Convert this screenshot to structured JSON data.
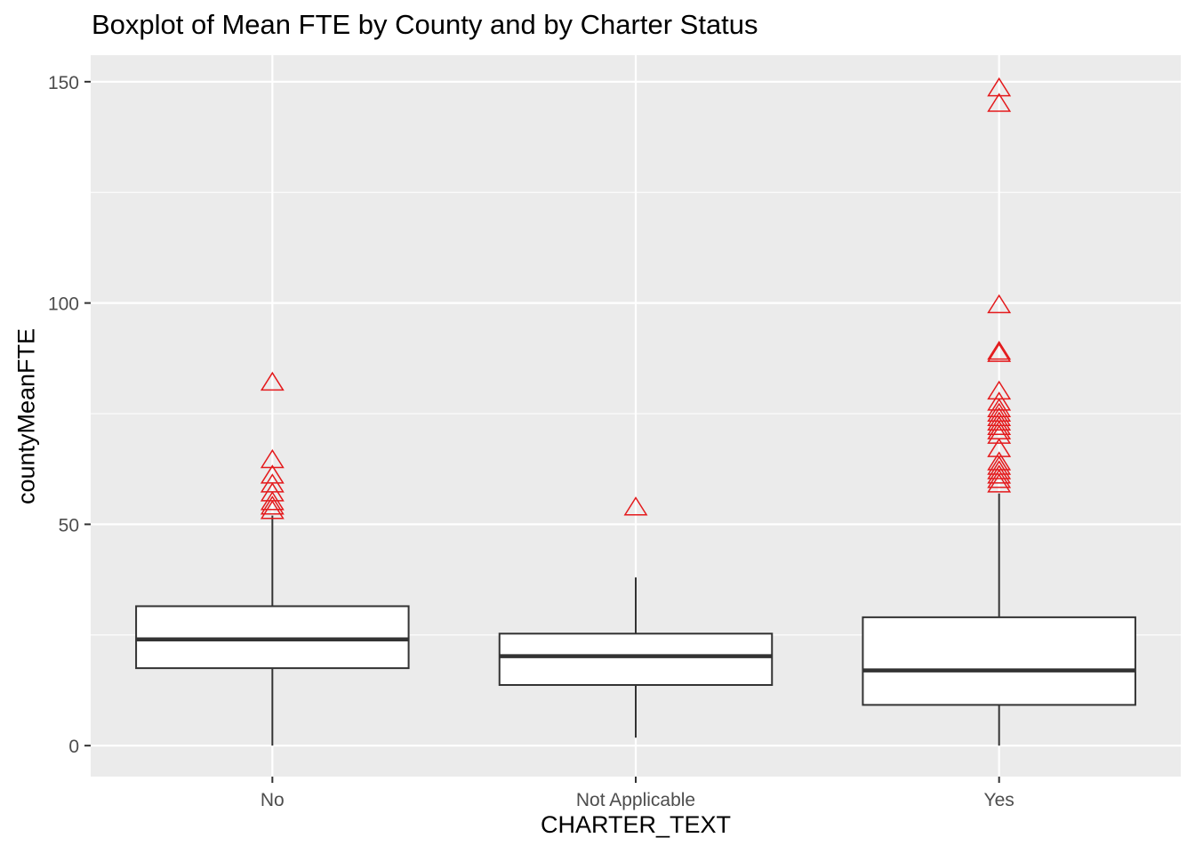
{
  "chart_data": {
    "type": "boxplot",
    "title": "Boxplot of Mean FTE by County and by Charter Status",
    "xlabel": "CHARTER_TEXT",
    "ylabel": "countyMeanFTE",
    "categories": [
      "No",
      "Not Applicable",
      "Yes"
    ],
    "y_ticks": [
      0,
      50,
      100,
      150
    ],
    "ylim": [
      -7,
      156
    ],
    "grid": true,
    "legend": "none",
    "colors": {
      "panel_background": "#ebebeb",
      "grid": "#ffffff",
      "box_outline": "#333333",
      "box_fill": "#ffffff",
      "outlier": "#e41a1c"
    },
    "outlier_shape": "triangle-open",
    "boxes": [
      {
        "category": "No",
        "whisker_low": 0,
        "q1": 17.5,
        "median": 24,
        "q3": 31.5,
        "whisker_high": 52,
        "outliers": [
          53,
          54,
          55,
          57,
          59,
          61,
          64.5,
          82
        ]
      },
      {
        "category": "Not Applicable",
        "whisker_low": 1.8,
        "q1": 13.7,
        "median": 20.2,
        "q3": 25.3,
        "whisker_high": 38,
        "outliers": [
          53.8
        ]
      },
      {
        "category": "Yes",
        "whisker_low": 0,
        "q1": 9.2,
        "median": 17,
        "q3": 29,
        "whisker_high": 57,
        "outliers": [
          59,
          60,
          61,
          62,
          63,
          64,
          67,
          70,
          71,
          72,
          73,
          74,
          75,
          76,
          77.5,
          80,
          88.5,
          89,
          99.5,
          145,
          148.5
        ]
      }
    ]
  }
}
